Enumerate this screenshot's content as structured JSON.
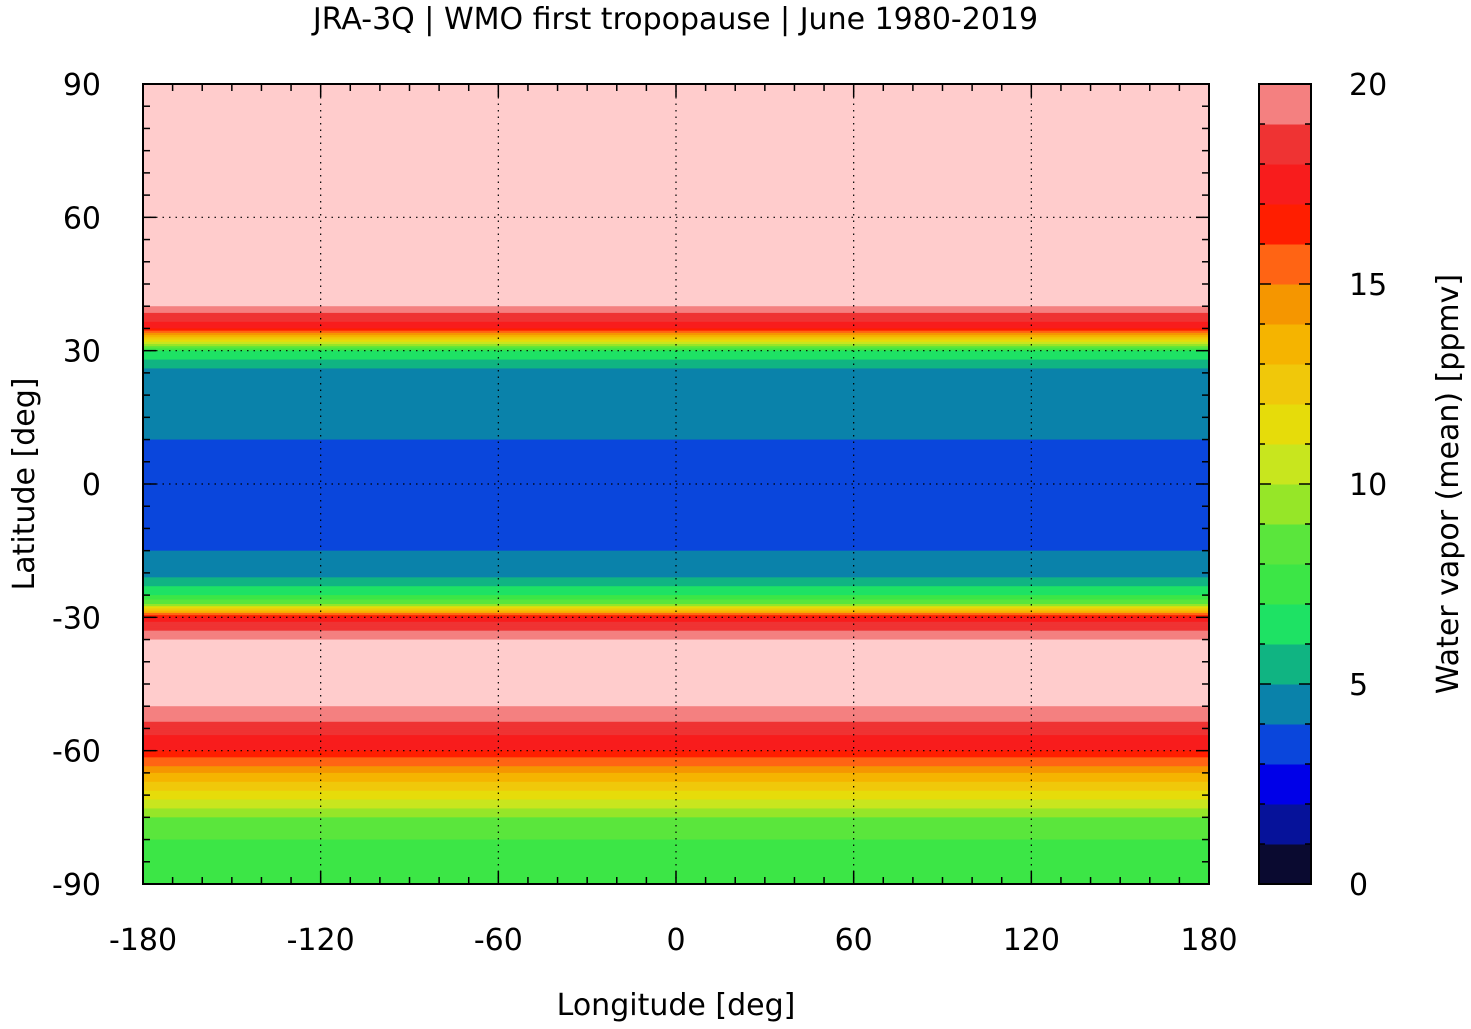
{
  "chart_data": {
    "type": "heatmap",
    "title": "JRA-3Q | WMO first tropopause | June 1980-2019",
    "xlabel": "Longitude [deg]",
    "ylabel": "Latitude [deg]",
    "colorbar_label": "Water vapor (mean) [ppmv]",
    "xlim": [
      -180,
      180
    ],
    "ylim": [
      -90,
      90
    ],
    "xticks": [
      "-180",
      "-120",
      "-60",
      "0",
      "60",
      "120",
      "180"
    ],
    "yticks": [
      "90",
      "60",
      "30",
      "0",
      "-30",
      "-60",
      "-90"
    ],
    "colorbar_ticks": [
      "20",
      "15",
      "10",
      "5",
      "0"
    ],
    "colorbar_range": [
      0,
      20
    ],
    "grid": true,
    "levels": [
      0,
      1,
      2,
      3,
      4,
      5,
      6,
      7,
      8,
      9,
      10,
      11,
      12,
      13,
      14,
      15,
      16,
      17,
      18,
      19,
      20
    ],
    "palette": [
      "#0a0a30",
      "#06129a",
      "#0000e8",
      "#0a46dc",
      "#0a82aa",
      "#10b482",
      "#1ee264",
      "#3ce646",
      "#5ae63c",
      "#96e628",
      "#c8e61e",
      "#e6dc0a",
      "#f0c80a",
      "#f5b400",
      "#f59600",
      "#ff6414",
      "#ff1e00",
      "#f81c1c",
      "#ef3333",
      "#f48080",
      "#ffcccc"
    ],
    "zonal_profile": {
      "lat": [
        -90,
        -85,
        -80,
        -75,
        -70,
        -65,
        -60,
        -55,
        -50,
        -45,
        -40,
        -35,
        -30,
        -27,
        -25,
        -22,
        -20,
        -15,
        -10,
        -5,
        0,
        5,
        10,
        15,
        20,
        25,
        30,
        35,
        40,
        45,
        50,
        55,
        60,
        65,
        70,
        75,
        80,
        85,
        90
      ],
      "value": [
        7.5,
        7.5,
        8.0,
        9.0,
        11.5,
        14.0,
        17.0,
        18.5,
        20,
        20,
        20,
        20,
        17.5,
        9.0,
        7.0,
        5.5,
        4.5,
        4.0,
        3.5,
        3.5,
        3.5,
        3.5,
        4.0,
        4.5,
        4.5,
        4.5,
        7.0,
        17.0,
        20,
        20,
        20,
        20,
        20,
        20,
        20,
        20,
        20,
        20,
        20
      ]
    }
  }
}
